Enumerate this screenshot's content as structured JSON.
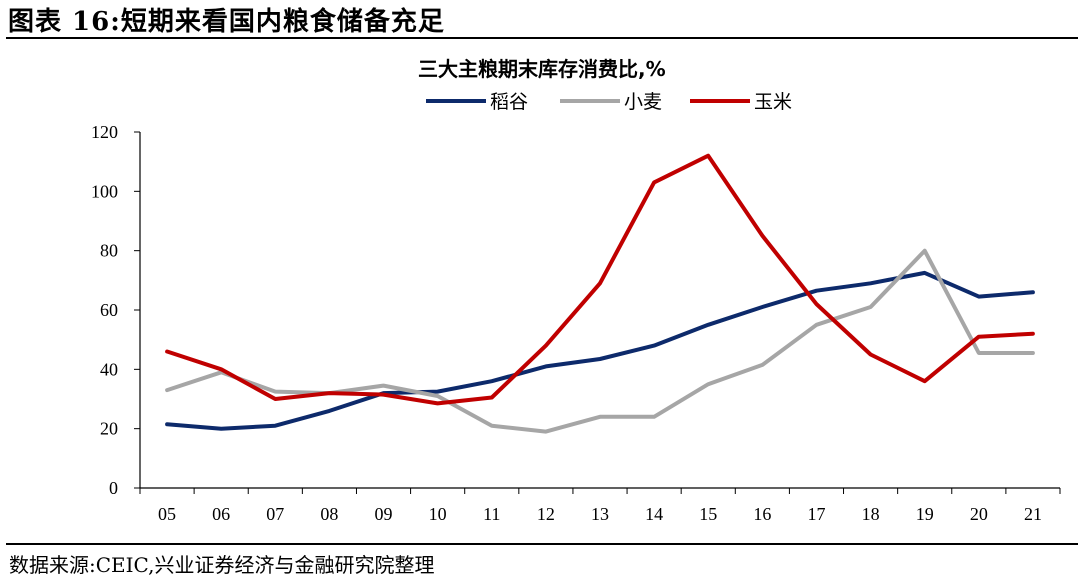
{
  "figure": {
    "title": "图表 16:短期来看国内粮食储备充足",
    "source": "数据来源:CEIC,兴业证券经济与金融研究院整理"
  },
  "chart_data": {
    "type": "line",
    "title": "三大主粮期末库存消费比,%",
    "xlabel": "",
    "ylabel": "",
    "categories": [
      "05",
      "06",
      "07",
      "08",
      "09",
      "10",
      "11",
      "12",
      "13",
      "14",
      "15",
      "16",
      "17",
      "18",
      "19",
      "20",
      "21"
    ],
    "ylim": [
      0,
      120
    ],
    "yticks": [
      0,
      20,
      40,
      60,
      80,
      100,
      120
    ],
    "grid": false,
    "legend_position": "top",
    "series": [
      {
        "name": "稻谷",
        "color": "#0d2a6b",
        "values": [
          21.5,
          20,
          21,
          26,
          32,
          32.5,
          36,
          41,
          43.5,
          48,
          55,
          61,
          66.5,
          69,
          72.5,
          64.5,
          66
        ]
      },
      {
        "name": "小麦",
        "color": "#a6a6a6",
        "values": [
          33,
          39,
          32.5,
          32,
          34.5,
          31,
          21,
          19,
          24,
          24,
          35,
          41.5,
          55,
          61,
          80,
          45.5,
          45.5
        ]
      },
      {
        "name": "玉米",
        "color": "#c00000",
        "values": [
          46,
          40,
          30,
          32,
          31.5,
          28.5,
          30.5,
          48,
          69,
          103,
          112,
          85,
          62,
          45,
          36,
          51,
          52
        ]
      }
    ]
  }
}
